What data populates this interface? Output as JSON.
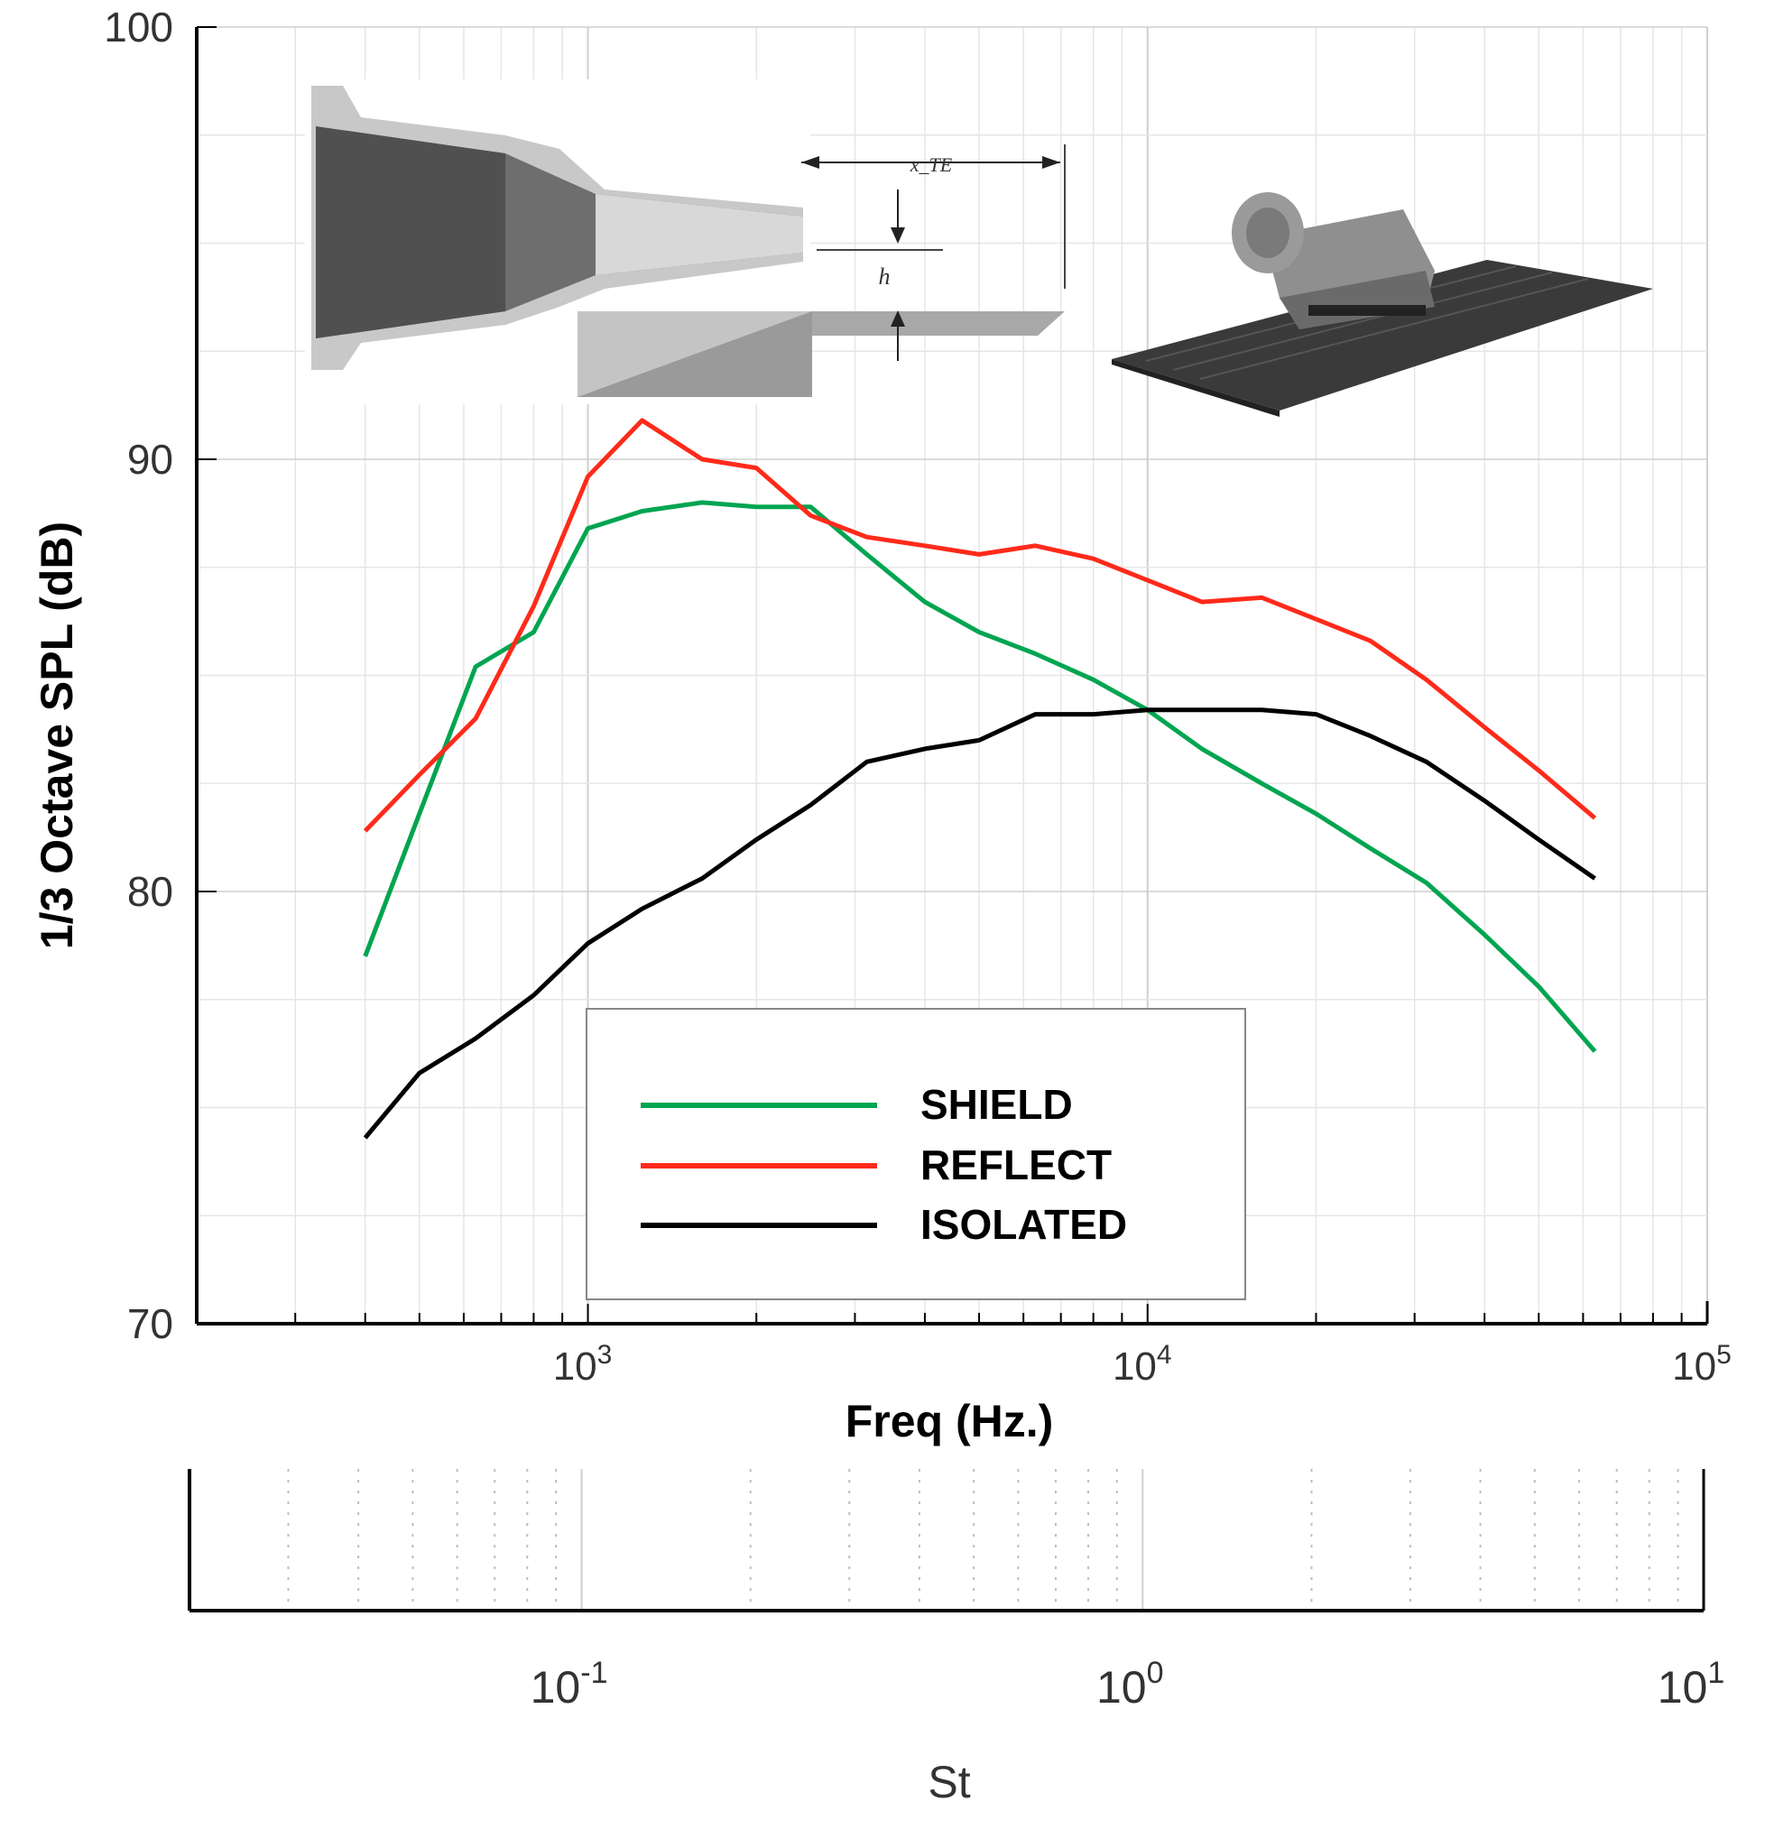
{
  "chart_data": {
    "type": "line",
    "xscale": "log",
    "xlabel": "Freq (Hz.)",
    "ylabel": "1/3 Octave SPL (dB)",
    "xlim": [
      200,
      100000
    ],
    "ylim": [
      70,
      100
    ],
    "yticks": [
      "70",
      "80",
      "90",
      "100"
    ],
    "xticks": [
      {
        "base": "10",
        "exp": "3",
        "value": 1000
      },
      {
        "base": "10",
        "exp": "4",
        "value": 10000
      },
      {
        "base": "10",
        "exp": "5",
        "value": 100000
      }
    ],
    "grid": true,
    "series": [
      {
        "name": "SHIELD",
        "color": "#00a550",
        "x": [
          400,
          500,
          630,
          800,
          1000,
          1250,
          1600,
          2000,
          2500,
          3150,
          4000,
          5000,
          6300,
          8000,
          10000,
          12500,
          16000,
          20000,
          25000,
          31500,
          40000,
          50000,
          63000
        ],
        "y": [
          78.5,
          81.8,
          85.2,
          86.0,
          88.4,
          88.8,
          89.0,
          88.9,
          88.9,
          87.8,
          86.7,
          86.0,
          85.5,
          84.9,
          84.2,
          83.3,
          82.5,
          81.8,
          81.0,
          80.2,
          79.0,
          77.8,
          76.3
        ]
      },
      {
        "name": "REFLECT",
        "color": "#ff2a1a",
        "x": [
          400,
          500,
          630,
          800,
          1000,
          1250,
          1600,
          2000,
          2500,
          3150,
          4000,
          5000,
          6300,
          8000,
          10000,
          12500,
          16000,
          20000,
          25000,
          31500,
          40000,
          50000,
          63000
        ],
        "y": [
          81.4,
          82.7,
          84.0,
          86.6,
          89.6,
          90.9,
          90.0,
          89.8,
          88.7,
          88.2,
          88.0,
          87.8,
          88.0,
          87.7,
          87.2,
          86.7,
          86.8,
          86.3,
          85.8,
          84.9,
          83.8,
          82.8,
          81.7
        ]
      },
      {
        "name": "ISOLATED",
        "color": "#000000",
        "x": [
          400,
          500,
          630,
          800,
          1000,
          1250,
          1600,
          2000,
          2500,
          3150,
          4000,
          5000,
          6300,
          8000,
          10000,
          12500,
          16000,
          20000,
          25000,
          31500,
          40000,
          50000,
          63000
        ],
        "y": [
          74.3,
          75.8,
          76.6,
          77.6,
          78.8,
          79.6,
          80.3,
          81.2,
          82.0,
          83.0,
          83.3,
          83.5,
          84.1,
          84.1,
          84.2,
          84.2,
          84.2,
          84.1,
          83.6,
          83.0,
          82.1,
          81.2,
          80.3
        ]
      }
    ],
    "legend": {
      "placement": "bottom-center",
      "entries": [
        "SHIELD",
        "REFLECT",
        "ISOLATED"
      ]
    },
    "secondary_axis": {
      "label": "St",
      "scale": "log",
      "xlim": [
        0.02,
        10
      ],
      "ticks": [
        {
          "base": "10",
          "exp": "-1",
          "value": 0.1
        },
        {
          "base": "10",
          "exp": "0",
          "value": 1
        },
        {
          "base": "10",
          "exp": "1",
          "value": 10
        }
      ]
    },
    "inset_annotations": {
      "distance_label": "x_TE",
      "height_label": "h"
    }
  }
}
